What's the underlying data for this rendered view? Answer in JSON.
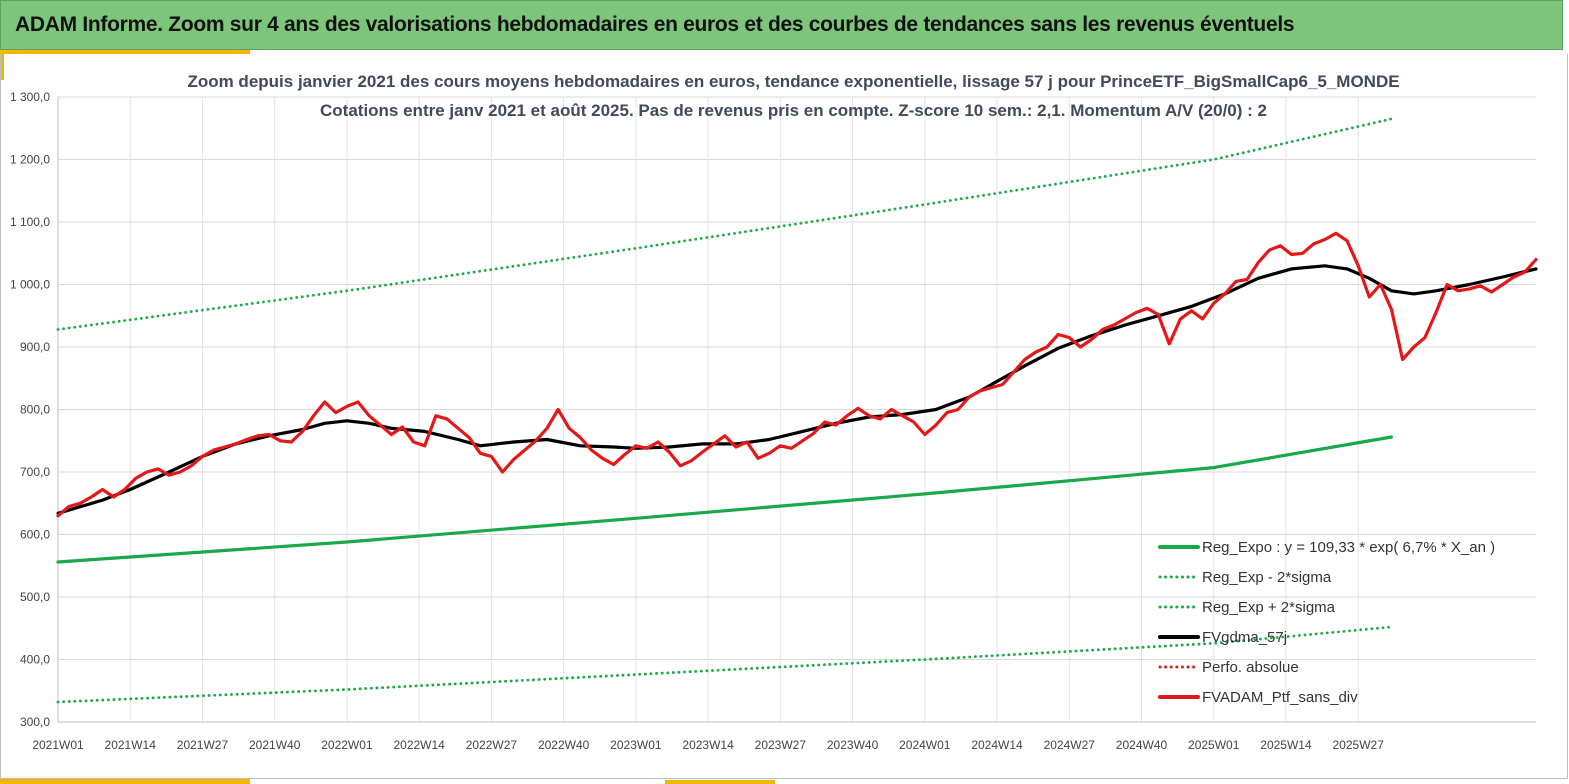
{
  "header": {
    "title": "ADAM Informe. Zoom sur 4 ans des valorisations hebdomadaires en euros et des courbes de tendances sans les revenus éventuels"
  },
  "colors": {
    "header_bg": "#7dc57a",
    "accent": "#f2b800",
    "reg_expo": "#1aa84a",
    "fvgdma": "#000000",
    "perfo": "#d62020",
    "fvadam": "#e41818"
  },
  "chart_data": {
    "type": "line",
    "title": "Zoom depuis janvier 2021 des cours moyens hebdomadaires  en euros, tendance exponentielle, lissage 57 j pour PrinceETF_BigSmallCap6_5_MONDE",
    "subtitle": "Cotations  entre janv 2021 et août 2025. Pas de revenus pris en compte. Z-score 10 sem.: 2,1. Momentum A/V (20/0) : 2",
    "xlabel": "",
    "ylabel": "",
    "ylim": [
      300,
      1300
    ],
    "yticks": [
      "300,0",
      "400,0",
      "500,0",
      "600,0",
      "700,0",
      "800,0",
      "900,0",
      "1 000,0",
      "1 100,0",
      "1 200,0",
      "1 300,0"
    ],
    "xticks": [
      "2021W01",
      "2021W14",
      "2021W27",
      "2021W40",
      "2022W01",
      "2022W14",
      "2022W27",
      "2022W40",
      "2023W01",
      "2023W14",
      "2023W27",
      "2023W40",
      "2024W01",
      "2024W14",
      "2024W27",
      "2024W40",
      "2025W01",
      "2025W14",
      "2025W27"
    ],
    "grid": true,
    "legend_position": "bottom-right",
    "series": [
      {
        "name": "Reg_Expo : y = 109,33 * exp( 6,7% *  X_an )",
        "style": "solid",
        "color": "#1aa84a",
        "points": [
          [
            0,
            556
          ],
          [
            52,
            588
          ],
          [
            104,
            626
          ],
          [
            156,
            665
          ],
          [
            208,
            707
          ],
          [
            240,
            756
          ]
        ]
      },
      {
        "name": "Reg_Exp - 2*sigma",
        "style": "dotted",
        "color": "#1aa84a",
        "points": [
          [
            0,
            332
          ],
          [
            52,
            352
          ],
          [
            104,
            376
          ],
          [
            156,
            400
          ],
          [
            208,
            426
          ],
          [
            240,
            452
          ]
        ]
      },
      {
        "name": "Reg_Exp + 2*sigma",
        "style": "dotted",
        "color": "#1aa84a",
        "points": [
          [
            0,
            928
          ],
          [
            52,
            990
          ],
          [
            104,
            1058
          ],
          [
            156,
            1128
          ],
          [
            208,
            1200
          ],
          [
            240,
            1265
          ]
        ]
      },
      {
        "name": "FVgdma_57j",
        "style": "solid",
        "color": "#000000",
        "points": [
          [
            0,
            634
          ],
          [
            8,
            655
          ],
          [
            13,
            672
          ],
          [
            20,
            700
          ],
          [
            26,
            725
          ],
          [
            32,
            745
          ],
          [
            38,
            758
          ],
          [
            44,
            768
          ],
          [
            48,
            778
          ],
          [
            52,
            782
          ],
          [
            56,
            778
          ],
          [
            60,
            770
          ],
          [
            66,
            765
          ],
          [
            72,
            752
          ],
          [
            76,
            742
          ],
          [
            82,
            748
          ],
          [
            88,
            752
          ],
          [
            94,
            742
          ],
          [
            100,
            740
          ],
          [
            104,
            738
          ],
          [
            110,
            740
          ],
          [
            116,
            745
          ],
          [
            122,
            745
          ],
          [
            128,
            752
          ],
          [
            134,
            765
          ],
          [
            140,
            778
          ],
          [
            146,
            788
          ],
          [
            152,
            792
          ],
          [
            158,
            800
          ],
          [
            164,
            820
          ],
          [
            168,
            840
          ],
          [
            174,
            870
          ],
          [
            180,
            898
          ],
          [
            186,
            918
          ],
          [
            192,
            935
          ],
          [
            198,
            950
          ],
          [
            204,
            965
          ],
          [
            210,
            985
          ],
          [
            216,
            1010
          ],
          [
            222,
            1025
          ],
          [
            228,
            1030
          ],
          [
            232,
            1025
          ],
          [
            236,
            1010
          ],
          [
            240,
            990
          ],
          [
            244,
            985
          ],
          [
            248,
            990
          ],
          [
            254,
            1000
          ],
          [
            260,
            1012
          ],
          [
            266,
            1025
          ]
        ]
      },
      {
        "name": "Perfo. absolue",
        "style": "dotted",
        "color": "#d62020",
        "points": []
      },
      {
        "name": "FVADAM_Ptf_sans_div",
        "style": "solid",
        "color": "#e41818",
        "points": [
          [
            0,
            630
          ],
          [
            2,
            645
          ],
          [
            4,
            650
          ],
          [
            6,
            660
          ],
          [
            8,
            672
          ],
          [
            10,
            660
          ],
          [
            12,
            672
          ],
          [
            14,
            690
          ],
          [
            16,
            700
          ],
          [
            18,
            705
          ],
          [
            20,
            695
          ],
          [
            22,
            700
          ],
          [
            24,
            710
          ],
          [
            26,
            725
          ],
          [
            28,
            735
          ],
          [
            30,
            740
          ],
          [
            32,
            745
          ],
          [
            34,
            752
          ],
          [
            36,
            758
          ],
          [
            38,
            760
          ],
          [
            40,
            750
          ],
          [
            42,
            748
          ],
          [
            44,
            765
          ],
          [
            46,
            790
          ],
          [
            48,
            812
          ],
          [
            50,
            795
          ],
          [
            52,
            805
          ],
          [
            54,
            812
          ],
          [
            56,
            790
          ],
          [
            58,
            775
          ],
          [
            60,
            760
          ],
          [
            62,
            772
          ],
          [
            64,
            748
          ],
          [
            66,
            742
          ],
          [
            68,
            790
          ],
          [
            70,
            785
          ],
          [
            72,
            770
          ],
          [
            74,
            755
          ],
          [
            76,
            730
          ],
          [
            78,
            725
          ],
          [
            80,
            700
          ],
          [
            82,
            720
          ],
          [
            84,
            735
          ],
          [
            86,
            750
          ],
          [
            88,
            770
          ],
          [
            90,
            800
          ],
          [
            92,
            770
          ],
          [
            94,
            755
          ],
          [
            96,
            735
          ],
          [
            98,
            722
          ],
          [
            100,
            712
          ],
          [
            102,
            728
          ],
          [
            104,
            742
          ],
          [
            106,
            738
          ],
          [
            108,
            748
          ],
          [
            110,
            732
          ],
          [
            112,
            710
          ],
          [
            114,
            718
          ],
          [
            116,
            732
          ],
          [
            118,
            745
          ],
          [
            120,
            758
          ],
          [
            122,
            740
          ],
          [
            124,
            748
          ],
          [
            126,
            722
          ],
          [
            128,
            730
          ],
          [
            130,
            742
          ],
          [
            132,
            738
          ],
          [
            134,
            750
          ],
          [
            136,
            762
          ],
          [
            138,
            780
          ],
          [
            140,
            775
          ],
          [
            142,
            790
          ],
          [
            144,
            802
          ],
          [
            146,
            790
          ],
          [
            148,
            785
          ],
          [
            150,
            800
          ],
          [
            152,
            790
          ],
          [
            154,
            780
          ],
          [
            156,
            760
          ],
          [
            158,
            775
          ],
          [
            160,
            795
          ],
          [
            162,
            800
          ],
          [
            164,
            820
          ],
          [
            166,
            830
          ],
          [
            168,
            835
          ],
          [
            170,
            840
          ],
          [
            172,
            860
          ],
          [
            174,
            880
          ],
          [
            176,
            892
          ],
          [
            178,
            900
          ],
          [
            180,
            920
          ],
          [
            182,
            915
          ],
          [
            184,
            900
          ],
          [
            186,
            912
          ],
          [
            188,
            928
          ],
          [
            190,
            935
          ],
          [
            192,
            945
          ],
          [
            194,
            955
          ],
          [
            196,
            962
          ],
          [
            198,
            952
          ],
          [
            200,
            905
          ],
          [
            202,
            945
          ],
          [
            204,
            958
          ],
          [
            206,
            945
          ],
          [
            208,
            970
          ],
          [
            210,
            985
          ],
          [
            212,
            1005
          ],
          [
            214,
            1008
          ],
          [
            216,
            1035
          ],
          [
            218,
            1055
          ],
          [
            220,
            1062
          ],
          [
            222,
            1048
          ],
          [
            224,
            1050
          ],
          [
            226,
            1065
          ],
          [
            228,
            1072
          ],
          [
            230,
            1082
          ],
          [
            232,
            1070
          ],
          [
            234,
            1030
          ],
          [
            236,
            980
          ],
          [
            238,
            1000
          ],
          [
            240,
            960
          ],
          [
            242,
            880
          ],
          [
            244,
            900
          ],
          [
            246,
            915
          ],
          [
            248,
            955
          ],
          [
            250,
            1000
          ],
          [
            252,
            990
          ],
          [
            254,
            993
          ],
          [
            256,
            998
          ],
          [
            258,
            988
          ],
          [
            260,
            1000
          ],
          [
            262,
            1012
          ],
          [
            264,
            1020
          ],
          [
            266,
            1040
          ]
        ]
      }
    ]
  }
}
